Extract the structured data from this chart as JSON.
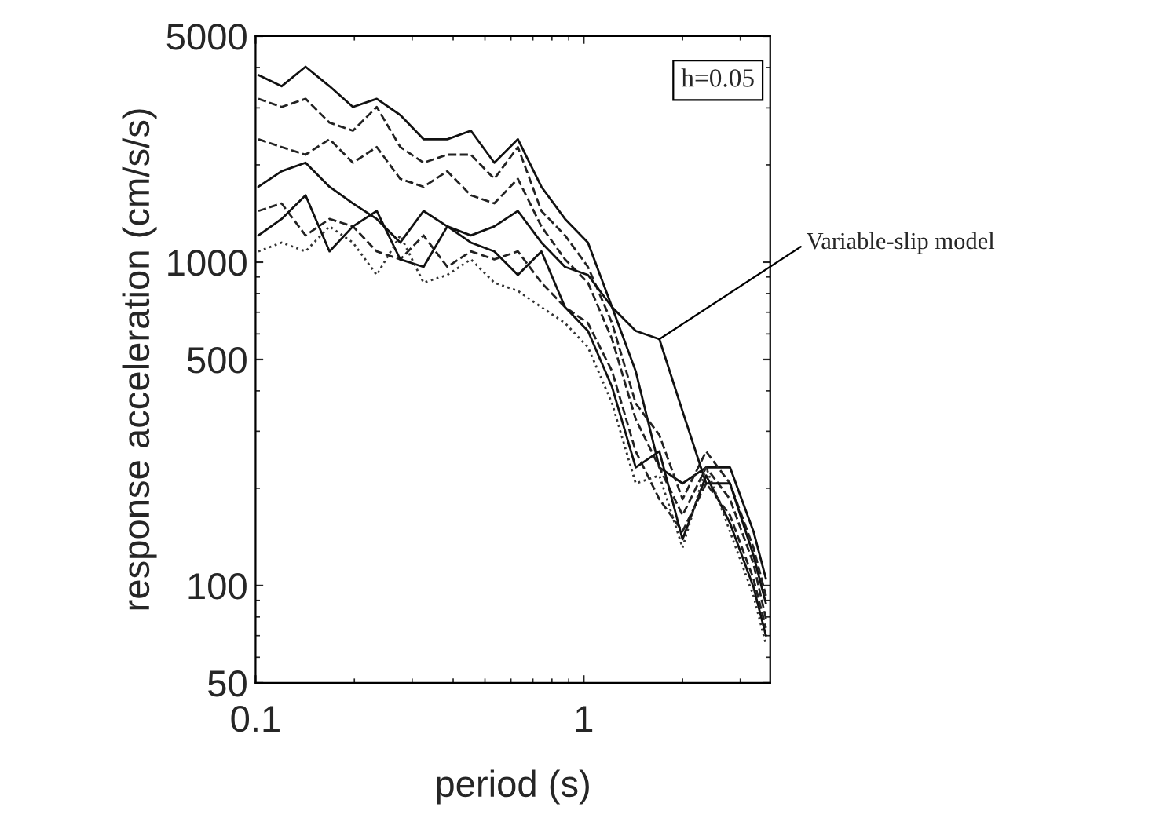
{
  "chart_data": {
    "type": "line",
    "xlabel": "period (s)",
    "ylabel": "response acceleration (cm/s/s)",
    "log": "xy",
    "xlim": [
      0.1,
      3.7
    ],
    "ylim": [
      50,
      5000
    ],
    "xticks": [
      0.1,
      1
    ],
    "yticks": [
      50,
      100,
      500,
      1000,
      5000
    ],
    "marker": "none",
    "x": [
      0.102,
      0.12,
      0.142,
      0.168,
      0.198,
      0.234,
      0.276,
      0.325,
      0.384,
      0.453,
      0.534,
      0.63,
      0.743,
      0.877,
      1.03,
      1.22,
      1.44,
      1.7,
      2.0,
      2.36,
      2.79,
      3.29,
      3.59
    ],
    "series": [
      {
        "color": "#111111",
        "line_style": "solid",
        "values": [
          3790,
          3500,
          4020,
          3500,
          3020,
          3200,
          2850,
          2400,
          2400,
          2550,
          2030,
          2400,
          1710,
          1360,
          1150,
          726,
          460,
          232,
          207,
          232,
          232,
          147,
          105
        ]
      },
      {
        "color": "#222222",
        "line_style": "dashed",
        "values": [
          3200,
          3020,
          3200,
          2700,
          2550,
          3020,
          2270,
          2030,
          2150,
          2150,
          1810,
          2270,
          1440,
          1210,
          967,
          648,
          366,
          292,
          185,
          260,
          207,
          131,
          93
        ]
      },
      {
        "color": "#222222",
        "line_style": "dashed",
        "values": [
          2400,
          2270,
          2150,
          2400,
          2030,
          2270,
          1810,
          1710,
          1910,
          1610,
          1520,
          1810,
          1290,
          1020,
          864,
          578,
          327,
          232,
          165,
          232,
          185,
          117,
          79
        ]
      },
      {
        "color": "#111111",
        "line_style": "solid",
        "values": [
          1710,
          1910,
          2030,
          1710,
          1520,
          1360,
          1150,
          1440,
          1290,
          1210,
          1290,
          1440,
          1150,
          967,
          913,
          726,
          613,
          578,
          346,
          207,
          207,
          124,
          88
        ]
      },
      {
        "color": "#222222",
        "line_style": "dashed",
        "values": [
          1440,
          1520,
          1210,
          1360,
          1290,
          1080,
          1020,
          1210,
          967,
          1080,
          1020,
          1080,
          864,
          726,
          648,
          460,
          260,
          185,
          147,
          207,
          165,
          105,
          74
        ]
      },
      {
        "color": "#111111",
        "line_style": "solid",
        "values": [
          1210,
          1360,
          1610,
          1080,
          1290,
          1440,
          1020,
          967,
          1290,
          1150,
          1080,
          913,
          1080,
          726,
          613,
          411,
          232,
          260,
          139,
          219,
          156,
          99,
          70
        ]
      },
      {
        "color": "#333333",
        "line_style": "dotted",
        "values": [
          1080,
          1150,
          1080,
          1290,
          1150,
          913,
          1210,
          864,
          913,
          1020,
          864,
          815,
          726,
          648,
          546,
          366,
          207,
          219,
          131,
          232,
          147,
          93,
          66
        ]
      }
    ],
    "annotations": [
      "h=0.05",
      {
        "text": "Variable-slip model",
        "x": 1.7,
        "y": 578
      }
    ]
  }
}
